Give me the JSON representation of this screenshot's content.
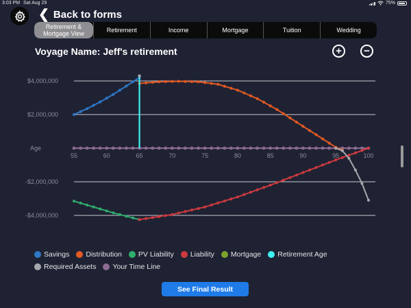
{
  "status": {
    "time": "3:03 PM",
    "date": "Sat Aug 29",
    "battery": "75%"
  },
  "nav": {
    "back_label": "Back to forms",
    "back_icon": "chevron-left-icon",
    "settings_icon": "gear-icon"
  },
  "tabs": [
    {
      "label": "Retirement & Mortgage View",
      "active": true
    },
    {
      "label": "Retirement",
      "active": false
    },
    {
      "label": "Income",
      "active": false
    },
    {
      "label": "Mortgage",
      "active": false
    },
    {
      "label": "Tuition",
      "active": false
    },
    {
      "label": "Wedding",
      "active": false
    }
  ],
  "voyage": {
    "title": "Voyage Name: Jeff's retirement",
    "zoom_in": "+",
    "zoom_out": "−"
  },
  "chart_data": {
    "type": "line",
    "x_ticks": [
      55,
      60,
      65,
      70,
      75,
      80,
      85,
      90,
      95,
      100
    ],
    "y_ticks": [
      {
        "value": 4000000,
        "label": "$4,000,000"
      },
      {
        "value": 2000000,
        "label": "$2,000,000"
      },
      {
        "value": 0,
        "label": "Age"
      },
      {
        "value": -2000000,
        "label": "-$2,000,000"
      },
      {
        "value": -4000000,
        "label": "-$4,000,000"
      }
    ],
    "xlim": [
      55,
      100
    ],
    "ylim": [
      -4000000,
      4000000
    ],
    "grid": true,
    "legend_position": "bottom",
    "series": [
      {
        "name": "Savings",
        "color": "#2e78c7",
        "x": [
          55,
          57,
          59,
          61,
          63,
          65
        ],
        "y": [
          2000000,
          2350000,
          2750000,
          3200000,
          3700000,
          4200000
        ]
      },
      {
        "name": "Distribution",
        "color": "#e25a24",
        "x": [
          65,
          68,
          71,
          74,
          77,
          80,
          83,
          86,
          89,
          92,
          95,
          96
        ],
        "y": [
          3850000,
          3950000,
          3980000,
          3950000,
          3800000,
          3450000,
          2950000,
          2300000,
          1550000,
          800000,
          50000,
          -100000
        ]
      },
      {
        "name": "PV Liability",
        "color": "#2fae6e",
        "x": [
          55,
          58,
          61,
          64,
          65
        ],
        "y": [
          -3150000,
          -3500000,
          -3850000,
          -4150000,
          -4250000
        ]
      },
      {
        "name": "Liability",
        "color": "#cc3a3e",
        "x": [
          65,
          70,
          75,
          80,
          85,
          90,
          95,
          100
        ],
        "y": [
          -4250000,
          -3950000,
          -3500000,
          -2900000,
          -2200000,
          -1450000,
          -700000,
          0
        ]
      },
      {
        "name": "Mortgage",
        "color": "#7ca32d",
        "x": [],
        "y": []
      },
      {
        "name": "Retirement Age",
        "color": "#3ff0f0",
        "x": [
          65,
          65
        ],
        "y": [
          0,
          4300000
        ]
      },
      {
        "name": "Required Assets",
        "color": "#a6a8ad",
        "x": [
          95,
          96,
          97,
          98,
          99,
          100
        ],
        "y": [
          0,
          -150000,
          -600000,
          -1300000,
          -2100000,
          -3100000
        ]
      },
      {
        "name": "Your Time Line",
        "color": "#8d6b92",
        "x": [
          55,
          100
        ],
        "y": [
          0,
          0
        ]
      }
    ]
  },
  "footer": {
    "button_label": "See Final Result"
  }
}
